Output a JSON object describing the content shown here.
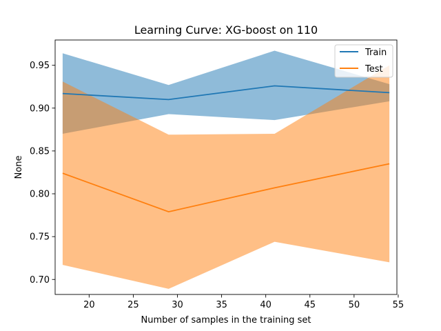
{
  "chart_data": {
    "type": "line",
    "title": "Learning Curve: XG-boost on 110",
    "xlabel": "Number of samples in the training set",
    "ylabel": "None",
    "xlim": [
      16.15,
      54.85
    ],
    "ylim": [
      0.6825,
      0.9795
    ],
    "x_ticks": [
      20,
      25,
      30,
      35,
      40,
      45,
      50,
      55
    ],
    "x_tick_labels": [
      "20",
      "25",
      "30",
      "35",
      "40",
      "45",
      "50",
      "55"
    ],
    "y_ticks": [
      0.7,
      0.75,
      0.8,
      0.85,
      0.9,
      0.95
    ],
    "y_tick_labels": [
      "0.70",
      "0.75",
      "0.80",
      "0.85",
      "0.90",
      "0.95"
    ],
    "grid": false,
    "legend_position": "top-right",
    "series": [
      {
        "name": "Train",
        "color": "#1f77b4",
        "x": [
          17,
          29,
          41,
          54
        ],
        "y": [
          0.917,
          0.91,
          0.926,
          0.918
        ],
        "band_upper": [
          0.964,
          0.927,
          0.967,
          0.928
        ],
        "band_lower": [
          0.87,
          0.893,
          0.886,
          0.908
        ]
      },
      {
        "name": "Test",
        "color": "#ff7f0e",
        "x": [
          17,
          29,
          41,
          54
        ],
        "y": [
          0.824,
          0.779,
          0.807,
          0.835
        ],
        "band_upper": [
          0.931,
          0.869,
          0.87,
          0.95
        ],
        "band_lower": [
          0.717,
          0.689,
          0.744,
          0.72
        ]
      }
    ]
  }
}
